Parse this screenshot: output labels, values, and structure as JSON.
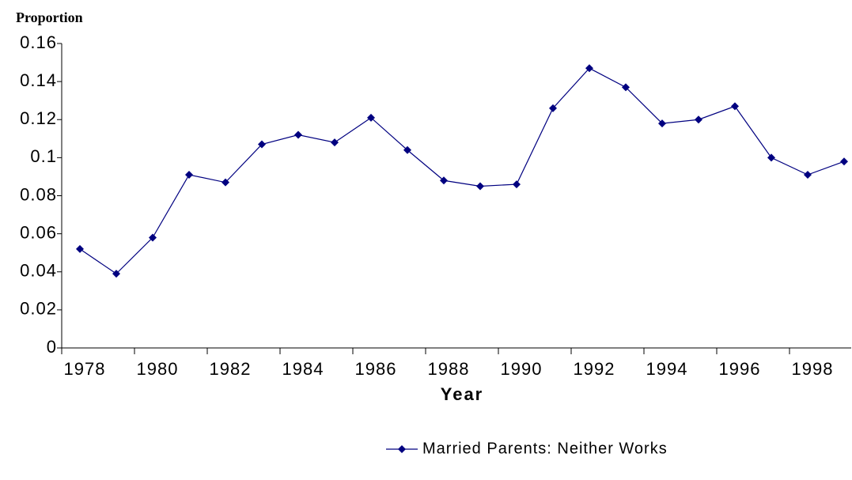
{
  "chart_data": {
    "type": "line",
    "title": "Proportion",
    "x_label": "Year",
    "categories": [
      "1978",
      null,
      "1980",
      null,
      "1982",
      null,
      "1984",
      null,
      "1986",
      null,
      "1988",
      null,
      "1990",
      null,
      "1992",
      null,
      "1994",
      null,
      "1996",
      null,
      "1998",
      null
    ],
    "series": [
      {
        "name": "Married Parents: Neither Works",
        "color": "#000080",
        "values": [
          0.052,
          0.039,
          0.058,
          0.091,
          0.087,
          0.107,
          0.112,
          0.108,
          0.121,
          0.104,
          0.088,
          0.085,
          0.086,
          0.126,
          0.147,
          0.137,
          0.118,
          0.12,
          0.127,
          0.1,
          0.091,
          0.098
        ]
      }
    ],
    "ylim": [
      0,
      0.16
    ],
    "yticks": [
      0,
      0.02,
      0.04,
      0.06,
      0.08,
      0.1,
      0.12,
      0.14,
      0.16
    ]
  }
}
